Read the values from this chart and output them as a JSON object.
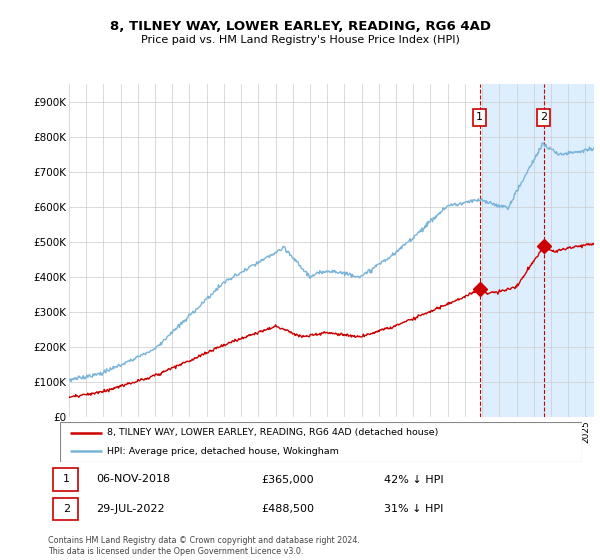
{
  "title": "8, TILNEY WAY, LOWER EARLEY, READING, RG6 4AD",
  "subtitle": "Price paid vs. HM Land Registry's House Price Index (HPI)",
  "ylabel_ticks": [
    "£0",
    "£100K",
    "£200K",
    "£300K",
    "£400K",
    "£500K",
    "£600K",
    "£700K",
    "£800K",
    "£900K"
  ],
  "ytick_values": [
    0,
    100000,
    200000,
    300000,
    400000,
    500000,
    600000,
    700000,
    800000,
    900000
  ],
  "xlim_start": 1995.0,
  "xlim_end": 2025.5,
  "ylim": [
    0,
    950000
  ],
  "hpi_color": "#7ab4d8",
  "price_color": "#cc0000",
  "vline_color": "#cc0000",
  "sale1_date": 2018.85,
  "sale1_price": 365000,
  "sale1_label": "1",
  "sale2_date": 2022.57,
  "sale2_price": 488500,
  "sale2_label": "2",
  "legend_entry1": "8, TILNEY WAY, LOWER EARLEY, READING, RG6 4AD (detached house)",
  "legend_entry2": "HPI: Average price, detached house, Wokingham",
  "table_row1": [
    "1",
    "06-NOV-2018",
    "£365,000",
    "42% ↓ HPI"
  ],
  "table_row2": [
    "2",
    "29-JUL-2022",
    "£488,500",
    "31% ↓ HPI"
  ],
  "footnote": "Contains HM Land Registry data © Crown copyright and database right 2024.\nThis data is licensed under the Open Government Licence v3.0.",
  "shade_start": 2019.0,
  "shade_color": "#ddeeff"
}
